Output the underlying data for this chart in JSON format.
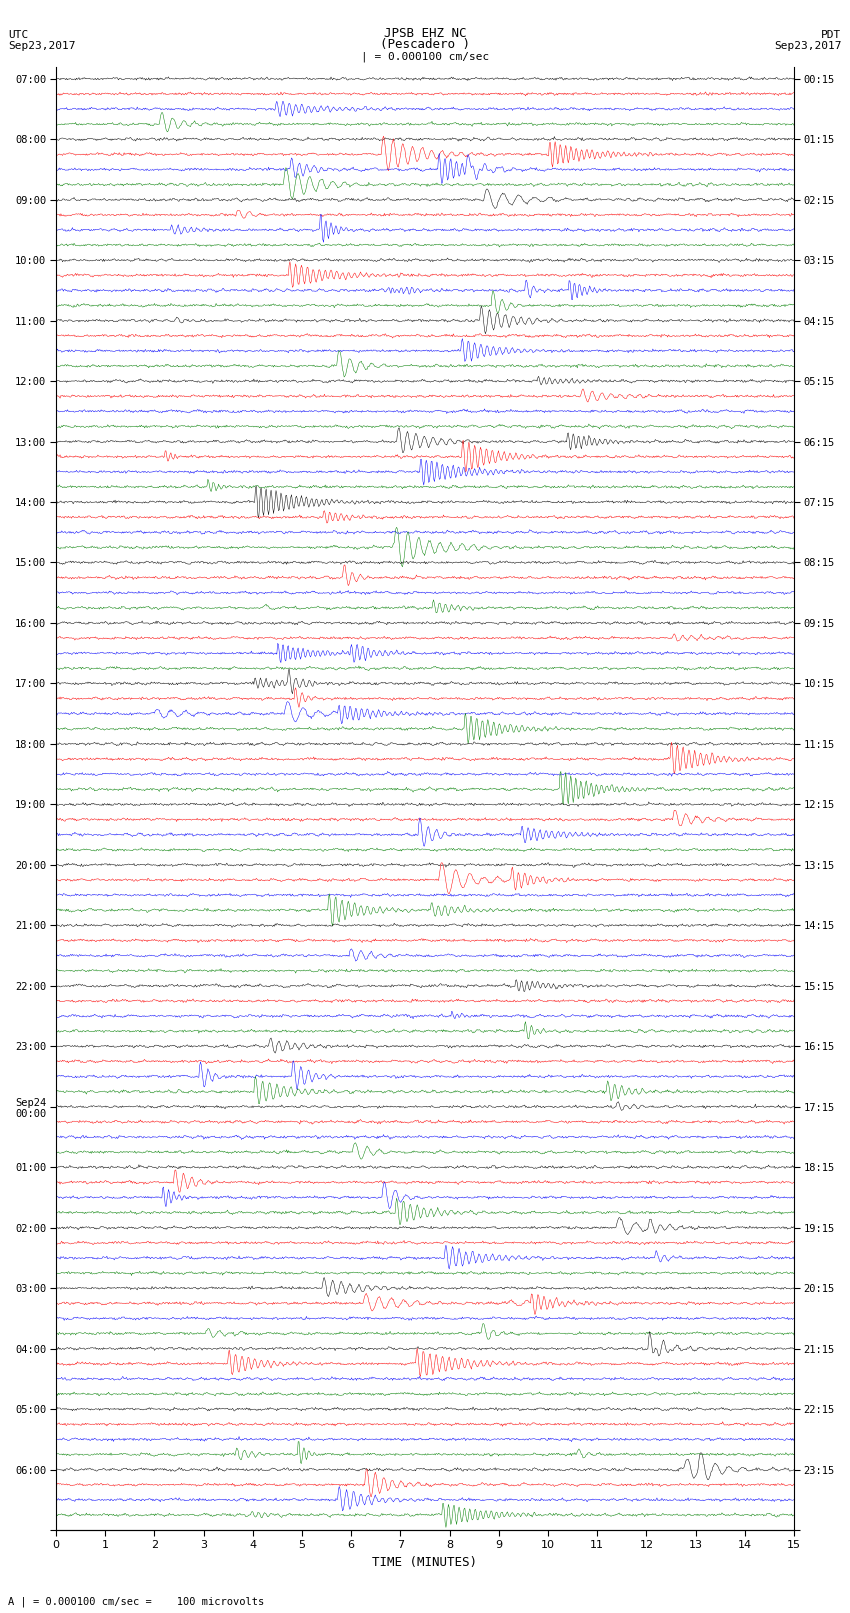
{
  "title_line1": "JPSB EHZ NC",
  "title_line2": "(Pescadero )",
  "scale_text": "| = 0.000100 cm/sec",
  "left_header_1": "UTC",
  "left_header_2": "Sep23,2017",
  "right_header_1": "PDT",
  "right_header_2": "Sep23,2017",
  "bottom_label": "TIME (MINUTES)",
  "bottom_note": "A | = 0.000100 cm/sec =    100 microvolts",
  "utc_times_hourly": [
    "07:00",
    "08:00",
    "09:00",
    "10:00",
    "11:00",
    "12:00",
    "13:00",
    "14:00",
    "15:00",
    "16:00",
    "17:00",
    "18:00",
    "19:00",
    "20:00",
    "21:00",
    "22:00",
    "23:00",
    "Sep24\n00:00",
    "01:00",
    "02:00",
    "03:00",
    "04:00",
    "05:00",
    "06:00"
  ],
  "pdt_times_hourly": [
    "00:15",
    "01:15",
    "02:15",
    "03:15",
    "04:15",
    "05:15",
    "06:15",
    "07:15",
    "08:15",
    "09:15",
    "10:15",
    "11:15",
    "12:15",
    "13:15",
    "14:15",
    "15:15",
    "16:15",
    "17:15",
    "18:15",
    "19:15",
    "20:15",
    "21:15",
    "22:15",
    "23:15"
  ],
  "colors": [
    "black",
    "red",
    "blue",
    "green"
  ],
  "n_rows": 96,
  "n_cols": 900,
  "xmin": 0,
  "xmax": 15,
  "bg_color": "white",
  "noise_seed": 42
}
